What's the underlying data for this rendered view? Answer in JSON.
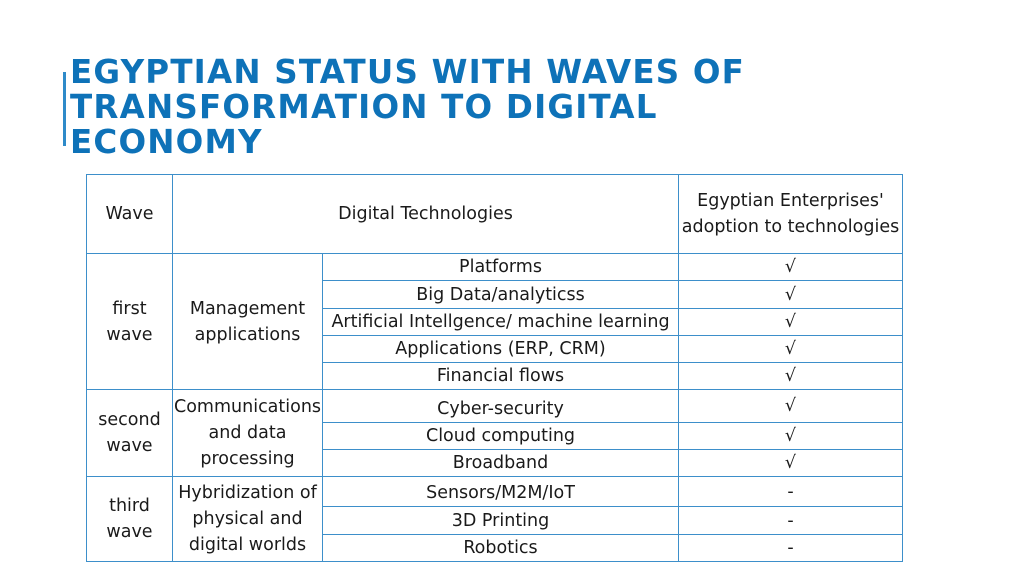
{
  "title_lines": [
    "EGYPTIAN STATUS WITH WAVES OF",
    "TRANSFORMATION TO DIGITAL",
    "ECONOMY"
  ],
  "table": {
    "headers": {
      "wave": "Wave",
      "technologies": "Digital Technologies",
      "adoption": "Egyptian Enterprises' adoption to technologies"
    },
    "waves": [
      {
        "wave": "first wave",
        "category": "Management applications",
        "technologies": [
          {
            "name": "Platforms",
            "adoption": "√"
          },
          {
            "name": "Big Data/analyticss",
            "adoption": "√"
          },
          {
            "name": "Artificial Intellgence/ machine learning",
            "adoption": "√"
          },
          {
            "name": "Applications (ERP, CRM)",
            "adoption": "√"
          },
          {
            "name": "Financial flows",
            "adoption": "√"
          }
        ]
      },
      {
        "wave": "second wave",
        "category": "Communications and data processing",
        "technologies": [
          {
            "name": "Cyber-security",
            "adoption": "√"
          },
          {
            "name": "Cloud computing",
            "adoption": "√"
          },
          {
            "name": "Broadband",
            "adoption": "√"
          }
        ]
      },
      {
        "wave": "third wave",
        "category": "Hybridization of physical and digital worlds",
        "technologies": [
          {
            "name": "Sensors/M2M/IoT",
            "adoption": "-"
          },
          {
            "name": "3D Printing",
            "adoption": "-"
          },
          {
            "name": "Robotics",
            "adoption": "-"
          }
        ]
      }
    ]
  }
}
